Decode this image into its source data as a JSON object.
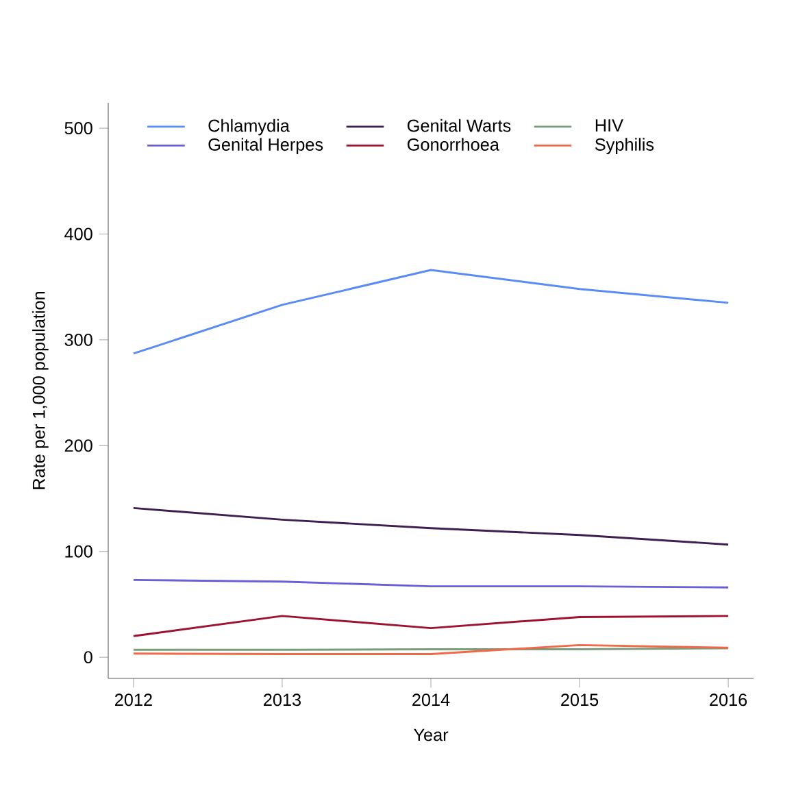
{
  "chart_data": {
    "type": "line",
    "xlabel": "Year",
    "ylabel": "Rate per 1,000 population",
    "x": [
      2012,
      2013,
      2014,
      2015,
      2016
    ],
    "series": [
      {
        "name": "Chlamydia",
        "color": "#5b8cf5",
        "values": [
          287,
          333,
          366,
          348,
          335
        ]
      },
      {
        "name": "Genital Warts",
        "color": "#3f1f4f",
        "values": [
          141,
          130,
          122,
          115.5,
          106.5
        ]
      },
      {
        "name": "HIV",
        "color": "#7b9b7b",
        "values": [
          7,
          7,
          7.5,
          7.5,
          8.5
        ]
      },
      {
        "name": "Genital Herpes",
        "color": "#6a5fd6",
        "values": [
          73,
          71.5,
          67,
          67,
          66
        ]
      },
      {
        "name": "Gonorrhoea",
        "color": "#9e1232",
        "values": [
          20,
          39,
          27.5,
          38,
          39
        ]
      },
      {
        "name": "Syphilis",
        "color": "#f06a4a",
        "values": [
          3.5,
          3,
          3,
          11.5,
          9
        ]
      }
    ],
    "xlim": [
      2011.83,
      2016.17
    ],
    "ylim": [
      -20,
      524
    ],
    "xticks": [
      2012,
      2013,
      2014,
      2015,
      2016
    ],
    "yticks": [
      0,
      100,
      200,
      300,
      400,
      500
    ],
    "grid": false,
    "legend": "top left",
    "marker": "none",
    "line_style": "solid"
  }
}
